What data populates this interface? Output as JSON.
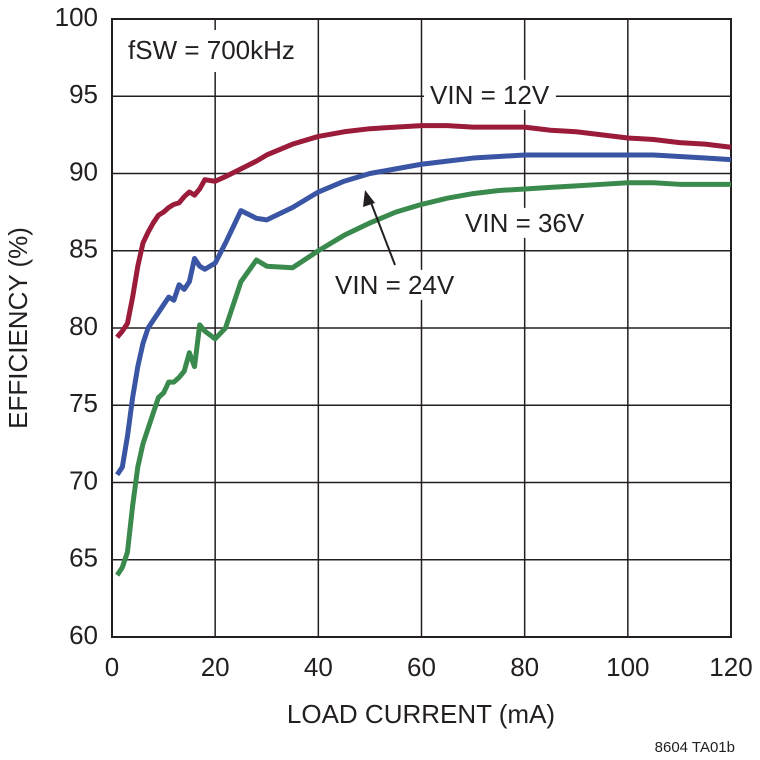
{
  "chart_data": {
    "type": "line",
    "xlabel": "LOAD CURRENT (mA)",
    "ylabel": "EFFICIENCY (%)",
    "annotations": [
      "fSW = 700kHz",
      "8604 TA01b"
    ],
    "x": [
      1,
      2,
      3,
      4,
      5,
      6,
      7,
      8,
      9,
      10,
      11,
      12,
      13,
      14,
      15,
      16,
      17,
      18,
      20,
      22,
      25,
      28,
      30,
      35,
      40,
      45,
      50,
      55,
      60,
      65,
      70,
      75,
      80,
      85,
      90,
      95,
      100,
      105,
      110,
      115,
      120
    ],
    "series": [
      {
        "name": "VIN = 12V",
        "color": "#9b1b3a",
        "values": [
          79.4,
          79.8,
          80.3,
          82,
          84,
          85.5,
          86.2,
          86.8,
          87.3,
          87.5,
          87.8,
          88,
          88.1,
          88.5,
          88.8,
          88.6,
          89,
          89.6,
          89.5,
          89.8,
          90.3,
          90.8,
          91.2,
          91.9,
          92.4,
          92.7,
          92.9,
          93,
          93.1,
          93.1,
          93,
          93,
          93,
          92.8,
          92.7,
          92.5,
          92.3,
          92.2,
          92,
          91.9,
          91.7
        ]
      },
      {
        "name": "VIN = 24V",
        "color": "#3a55a4",
        "values": [
          70.5,
          71,
          73,
          75.5,
          77.5,
          79,
          80,
          80.5,
          81,
          81.5,
          82,
          81.8,
          82.8,
          82.5,
          83,
          84.5,
          84,
          83.8,
          84.2,
          85.5,
          87.6,
          87.1,
          87,
          87.8,
          88.8,
          89.5,
          90,
          90.3,
          90.6,
          90.8,
          91,
          91.1,
          91.2,
          91.2,
          91.2,
          91.2,
          91.2,
          91.2,
          91.1,
          91,
          90.9
        ]
      },
      {
        "name": "VIN = 36V",
        "color": "#3a8a4e",
        "values": [
          64,
          64.5,
          65.5,
          68.5,
          71,
          72.5,
          73.5,
          74.5,
          75.5,
          75.8,
          76.5,
          76.5,
          76.8,
          77.2,
          78.4,
          77.5,
          80.2,
          79.8,
          79.3,
          80,
          83,
          84.4,
          84,
          83.9,
          85,
          86,
          86.8,
          87.5,
          88,
          88.4,
          88.7,
          88.9,
          89,
          89.1,
          89.2,
          89.3,
          89.4,
          89.4,
          89.3,
          89.3,
          89.3
        ]
      }
    ],
    "xlim": [
      0,
      120
    ],
    "xticks": [
      0,
      20,
      40,
      60,
      80,
      100,
      120
    ],
    "ylim": [
      60,
      100
    ],
    "yticks": [
      60,
      65,
      70,
      75,
      80,
      85,
      90,
      95,
      100
    ],
    "grid": true
  }
}
